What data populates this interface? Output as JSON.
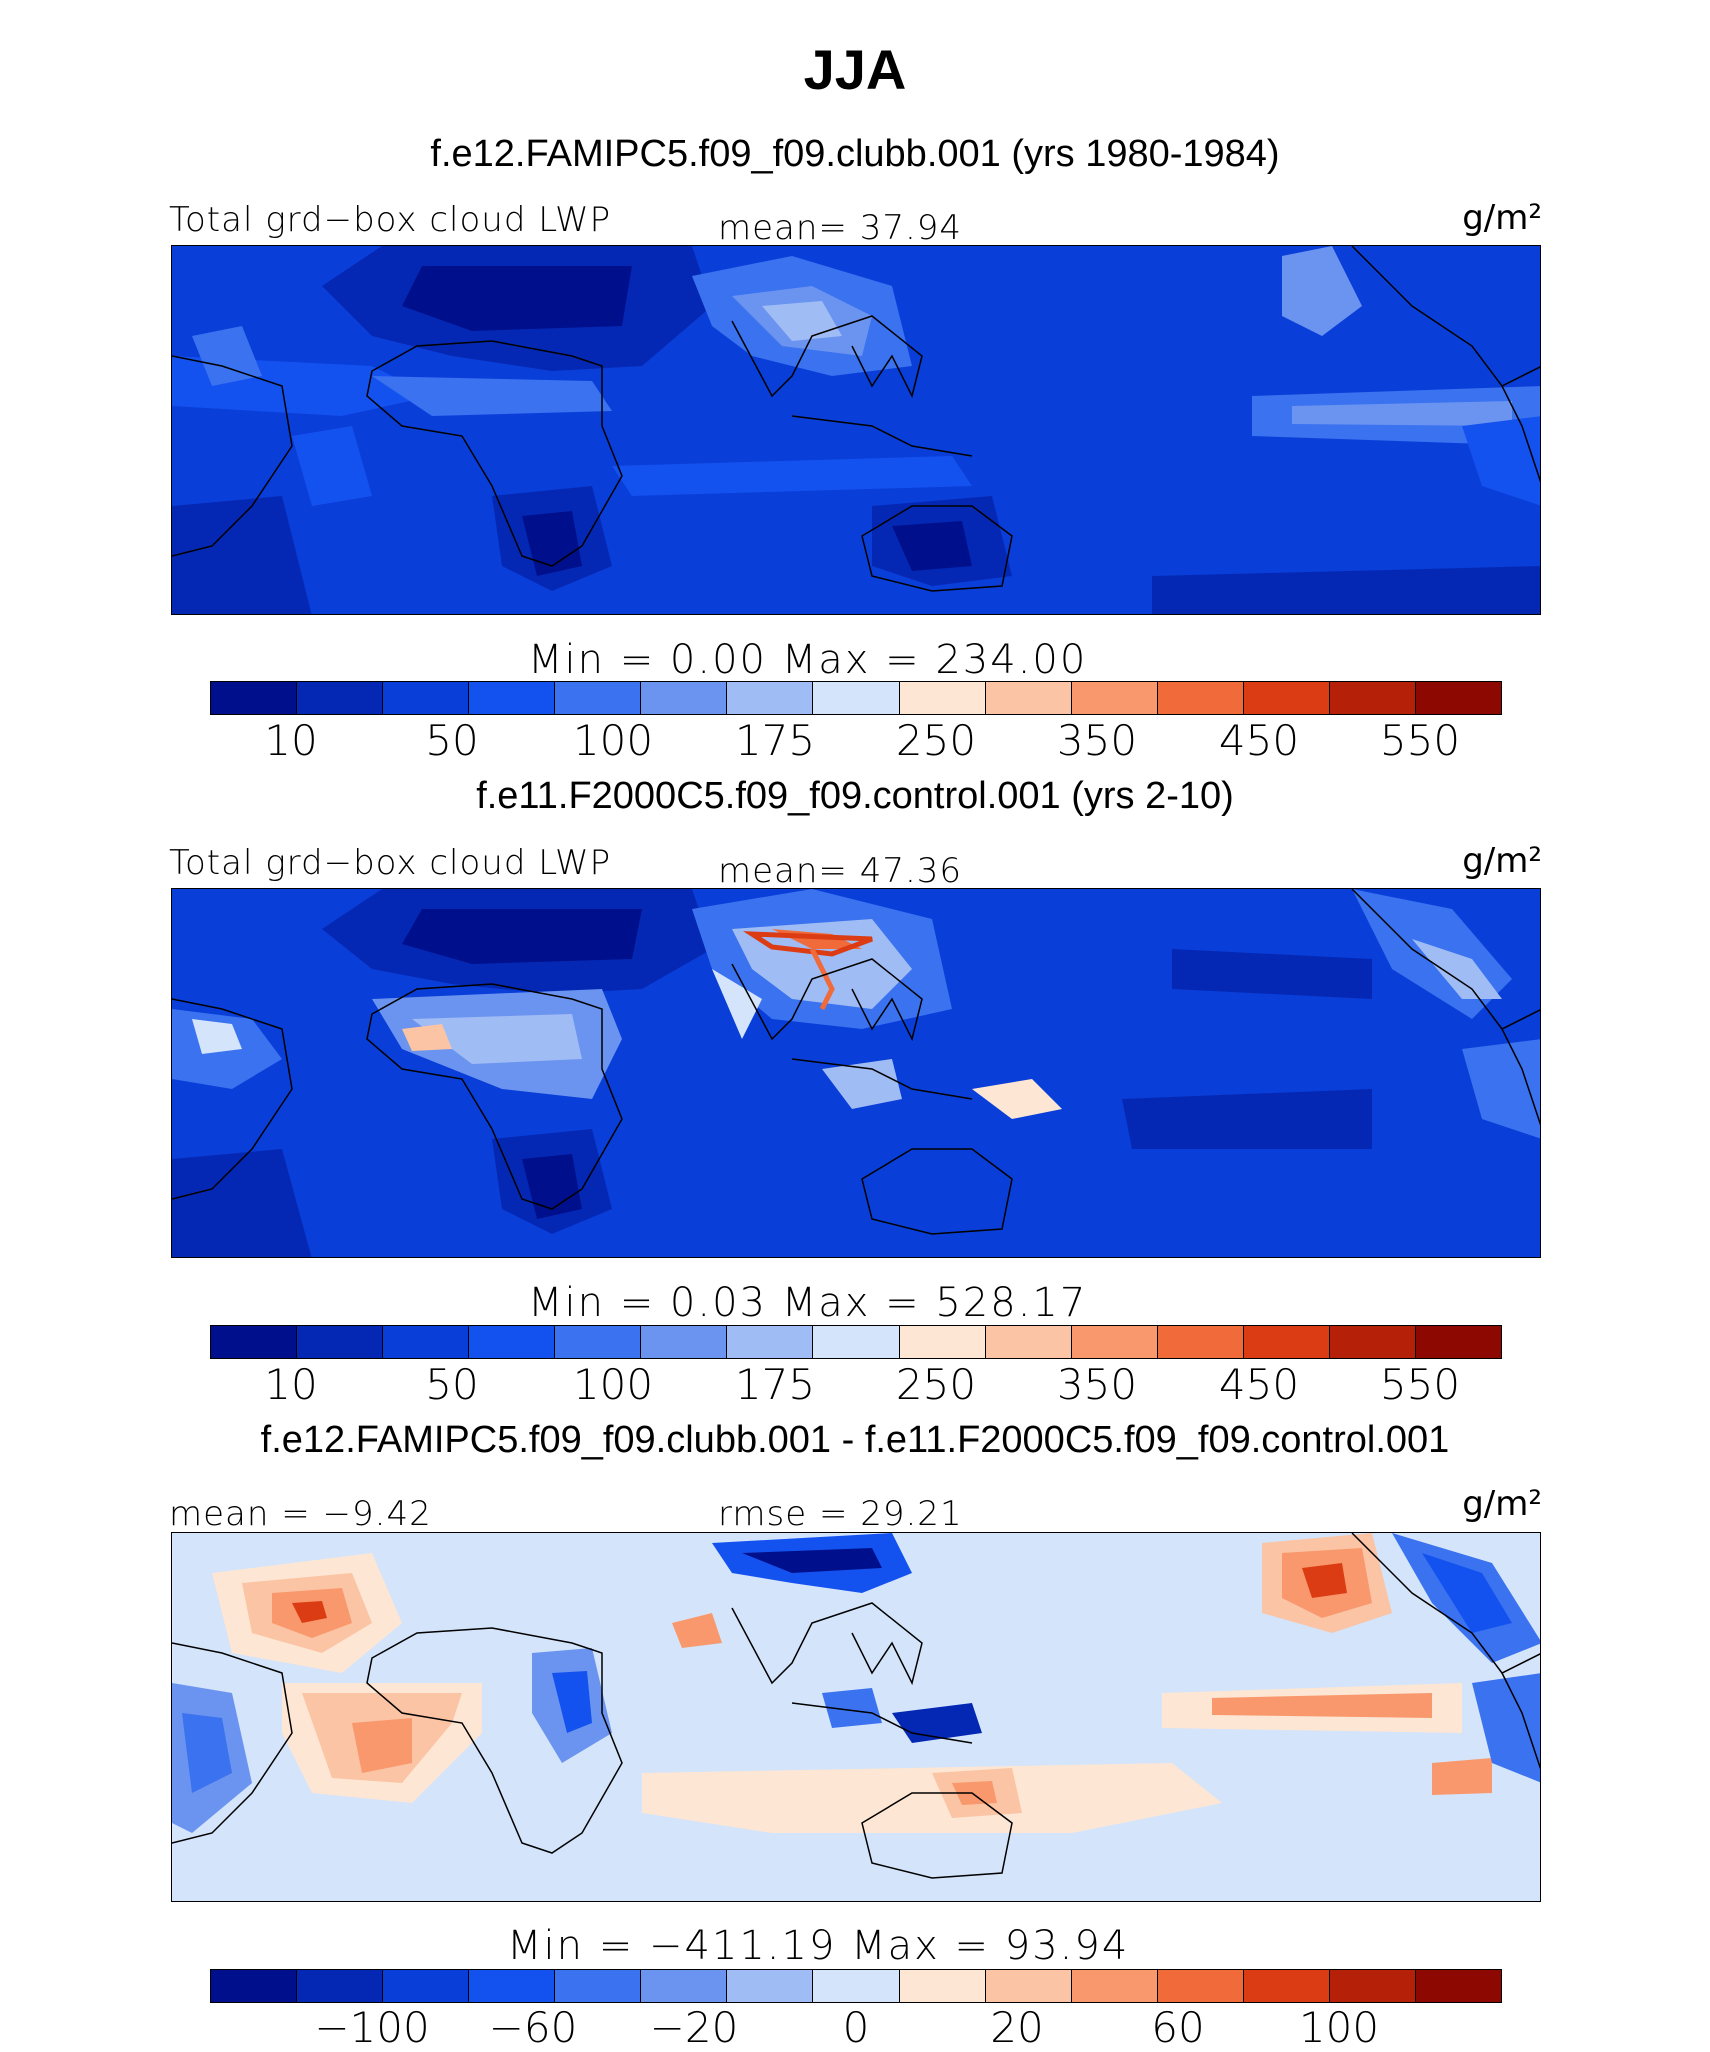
{
  "figure_title": "JJA",
  "panels": [
    {
      "case_title": "f.e12.FAMIPC5.f09_f09.clubb.001 (yrs 1980-1984)",
      "left_label": "Total grd−box cloud LWP",
      "center_label": "mean=   37.94",
      "units": "g/m²",
      "minmax": "Min  =    0.00  Max  =  234.00",
      "colorbar_ticks": [
        "10",
        "50",
        "100",
        "175",
        "250",
        "350",
        "450",
        "550"
      ]
    },
    {
      "case_title": "f.e11.F2000C5.f09_f09.control.001 (yrs 2-10)",
      "left_label": "Total grd−box cloud LWP",
      "center_label": "mean=   47.36",
      "units": "g/m²",
      "minmax": "Min  =    0.03  Max  =  528.17",
      "colorbar_ticks": [
        "10",
        "50",
        "100",
        "175",
        "250",
        "350",
        "450",
        "550"
      ]
    },
    {
      "case_title": "f.e12.FAMIPC5.f09_f09.clubb.001 - f.e11.F2000C5.f09_f09.control.001",
      "left_label": "mean =   −9.42",
      "center_label": "rmse  =   29.21",
      "units": "g/m²",
      "minmax": "Min  = −411.19  Max  =   93.94",
      "colorbar_ticks": [
        "−100",
        "−60",
        "−20",
        "0",
        "20",
        "60",
        "100"
      ]
    }
  ],
  "colors": {
    "field_scale": [
      "#00108c",
      "#0528b4",
      "#0a3ed8",
      "#1452f0",
      "#3a72f0",
      "#6a94f0",
      "#a0bcf4",
      "#d4e4fa",
      "#fde6d4",
      "#fbc4a4",
      "#f8986c",
      "#f06a3a",
      "#dc3c14",
      "#b42008",
      "#8c0800"
    ],
    "diff_scale": [
      "#00108c",
      "#0528b4",
      "#0a3ed8",
      "#1452f0",
      "#3a72f0",
      "#6a94f0",
      "#a0bcf4",
      "#d4e4fa",
      "#fde6d4",
      "#fbc4a4",
      "#f8986c",
      "#f06a3a",
      "#dc3c14",
      "#b42008",
      "#8c0800"
    ]
  }
}
